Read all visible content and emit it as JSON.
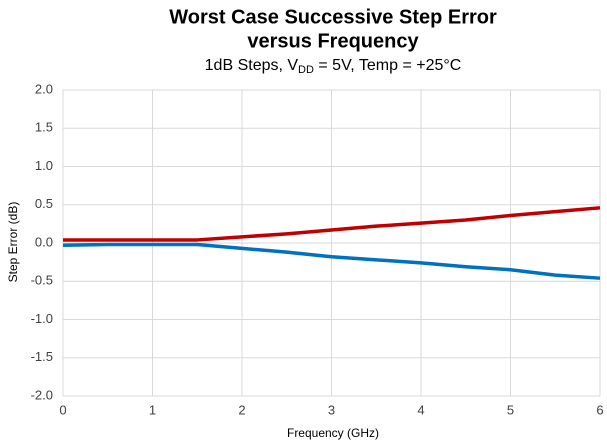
{
  "chart_data": {
    "type": "line",
    "title": [
      "Worst Case Successive Step Error",
      "versus Frequency"
    ],
    "subtitle": [
      "1dB Steps, V",
      "DD",
      " = 5V, Temp = +25°C"
    ],
    "x_label": "Frequency (GHz)",
    "y_label": "Step Error (dB)",
    "x": [
      0,
      0.5,
      1,
      1.5,
      2,
      2.5,
      3,
      3.5,
      4,
      4.5,
      5,
      5.5,
      6
    ],
    "series": [
      {
        "color": "#c00000",
        "values": [
          0.04,
          0.04,
          0.04,
          0.04,
          0.08,
          0.12,
          0.17,
          0.22,
          0.26,
          0.3,
          0.36,
          0.41,
          0.46
        ]
      },
      {
        "color": "#0070c0",
        "values": [
          -0.03,
          -0.02,
          -0.02,
          -0.02,
          -0.07,
          -0.12,
          -0.18,
          -0.22,
          -0.26,
          -0.31,
          -0.35,
          -0.42,
          -0.46
        ]
      }
    ],
    "xlim": [
      0,
      6
    ],
    "xticks": [
      0,
      1,
      2,
      3,
      4,
      5,
      6
    ],
    "ylim": [
      -2,
      2
    ],
    "yticks": [
      {
        "value": -2,
        "label": "-2.0"
      },
      -1.5,
      {
        "value": -1,
        "label": "-1.0"
      },
      -0.5,
      {
        "value": 0,
        "label": "0.0"
      },
      0.5,
      {
        "value": 1,
        "label": "1.0"
      },
      1.5,
      {
        "value": 2,
        "label": "2.0"
      }
    ],
    "grid": true
  }
}
